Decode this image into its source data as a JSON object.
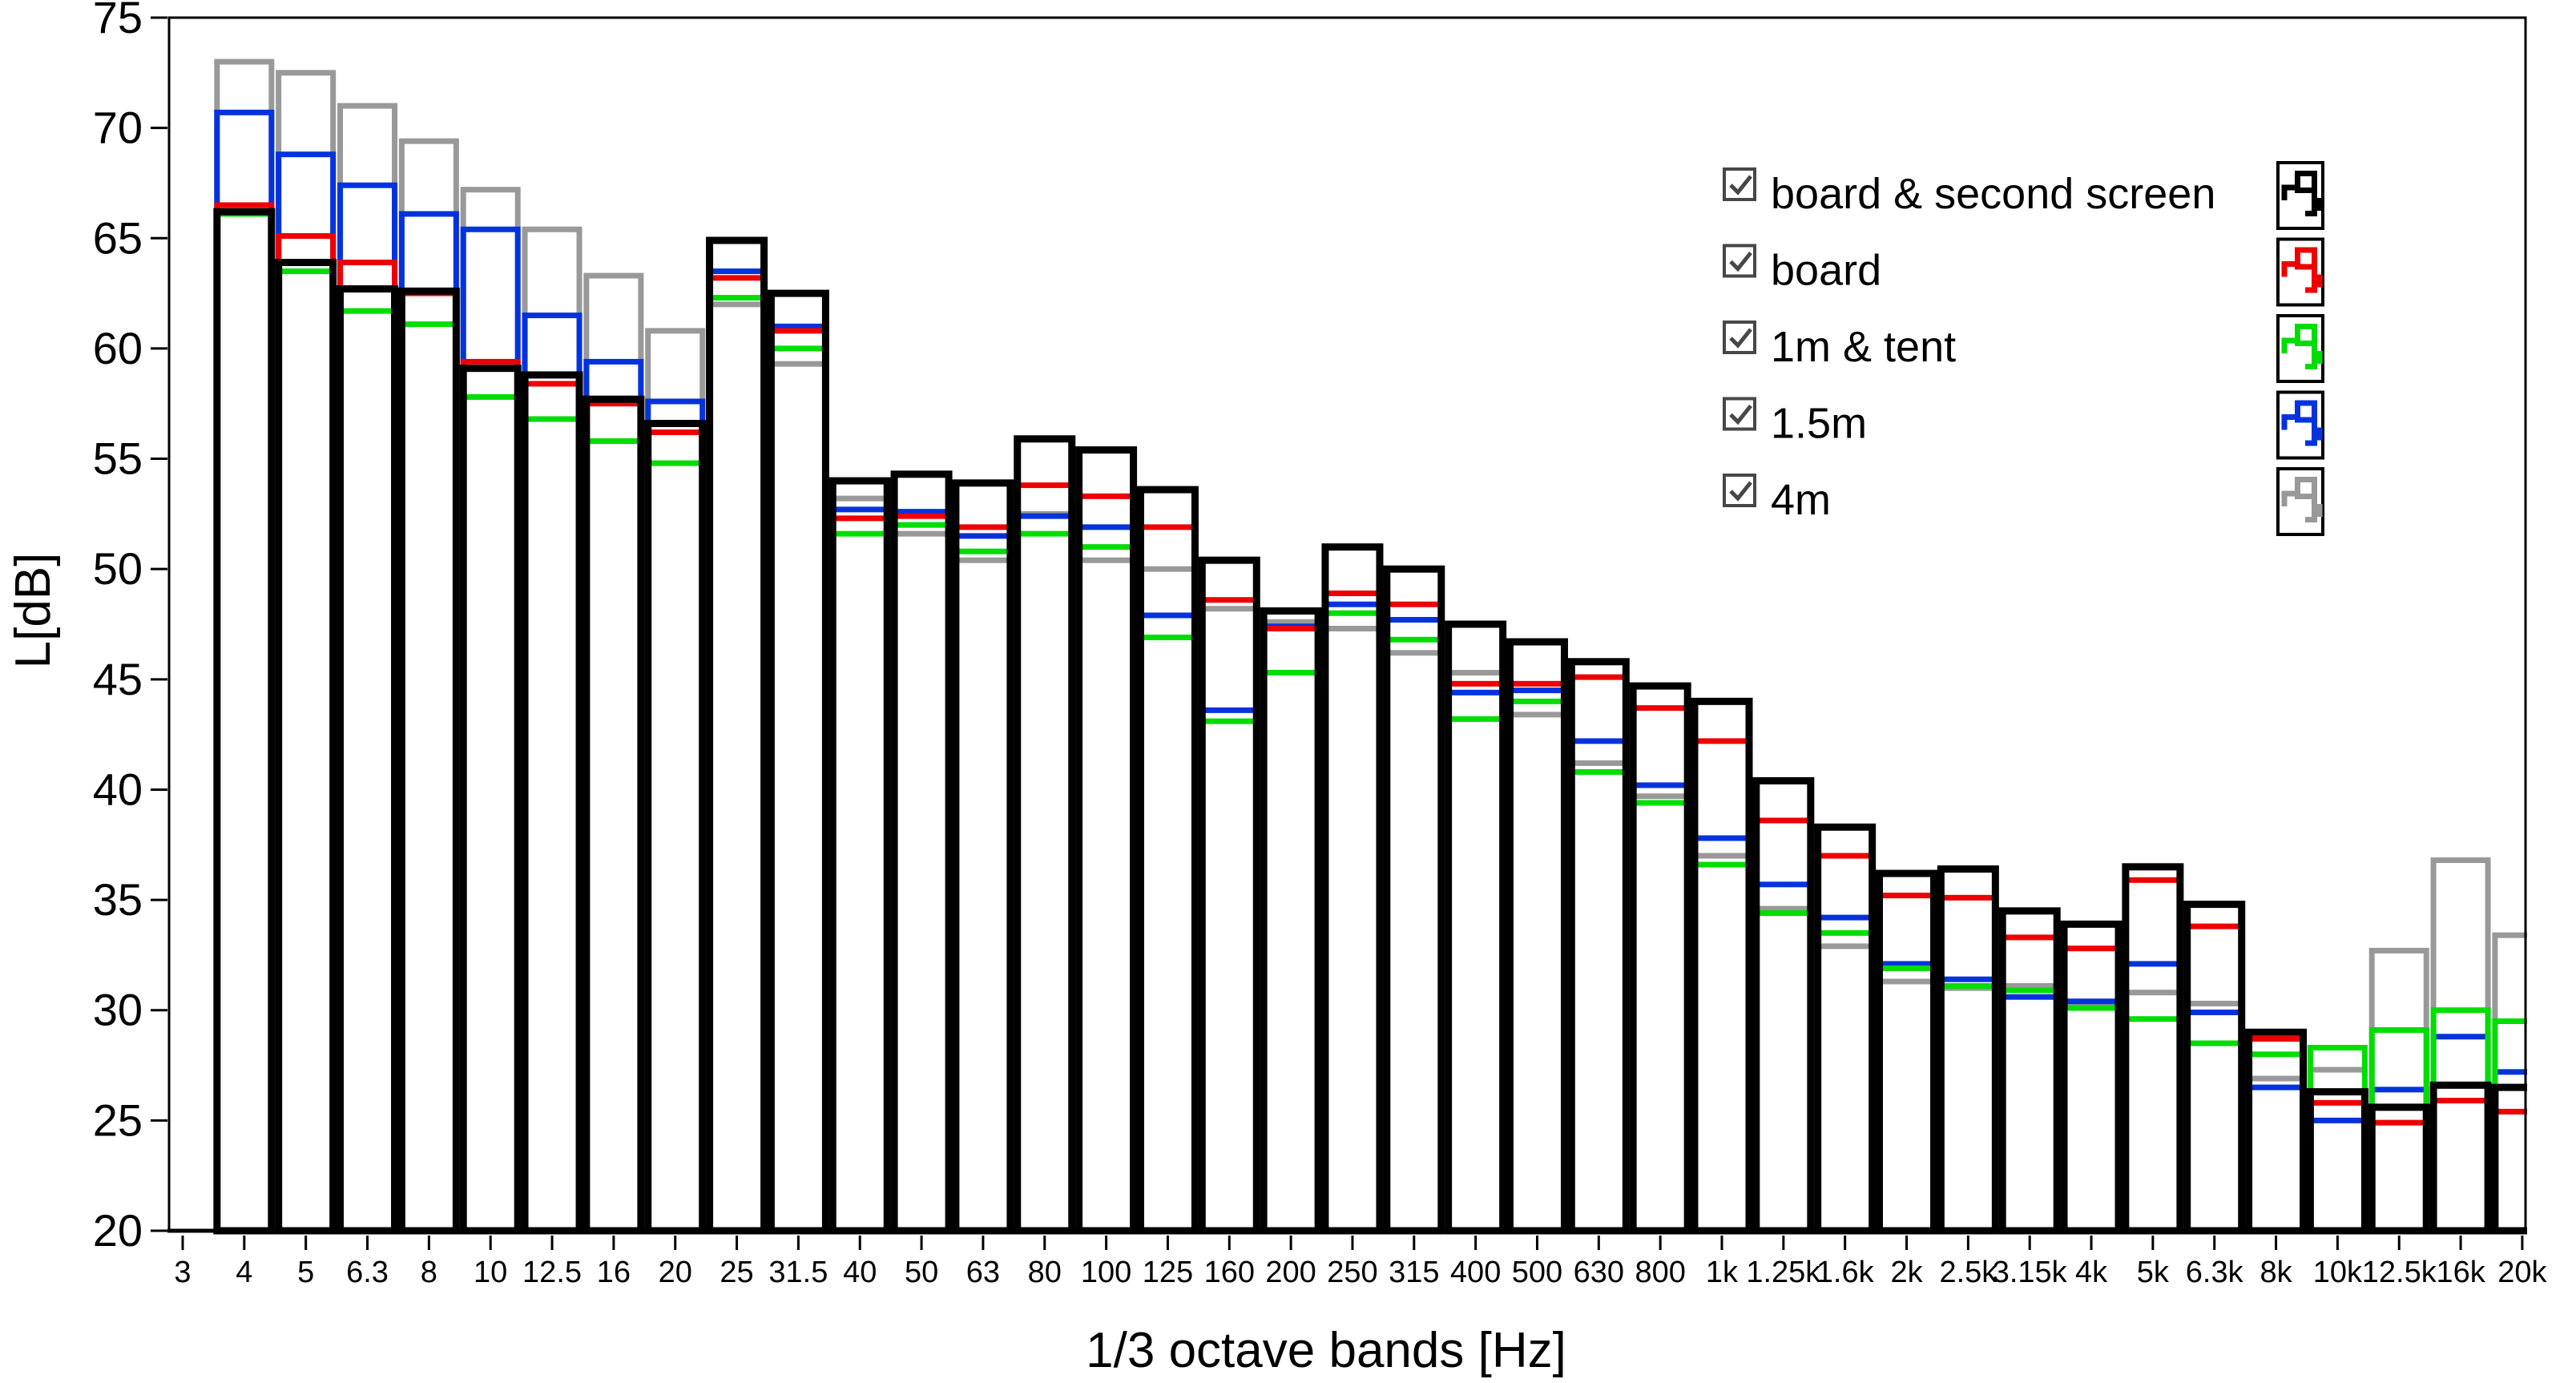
{
  "legend": {
    "items": [
      {
        "label": "board & second screen",
        "color": "#000000",
        "checked": true
      },
      {
        "label": "board",
        "color": "#ee0000",
        "checked": true
      },
      {
        "label": "1m & tent",
        "color": "#00dd00",
        "checked": true
      },
      {
        "label": "1.5m",
        "color": "#0433dd",
        "checked": true
      },
      {
        "label": "4m",
        "color": "#999999",
        "checked": true
      }
    ]
  },
  "chart_data": {
    "type": "bar",
    "subtype": "overlapping-outlined-bars",
    "title": "",
    "xlabel": "1/3 octave bands [Hz]",
    "ylabel": "L[dB]",
    "ylim": [
      20,
      75
    ],
    "ytick_step": 5,
    "grid": false,
    "legend_position": "top-right-inside",
    "categories": [
      "3",
      "4",
      "5",
      "6.3",
      "8",
      "10",
      "12.5",
      "16",
      "20",
      "25",
      "31.5",
      "40",
      "50",
      "63",
      "80",
      "100",
      "125",
      "160",
      "200",
      "250",
      "315",
      "400",
      "500",
      "630",
      "800",
      "1k",
      "1.25k",
      "1.6k",
      "2k",
      "2.5k",
      "3.15k",
      "4k",
      "5k",
      "6.3k",
      "8k",
      "10k",
      "12.5k",
      "16k",
      "20k"
    ],
    "series": [
      {
        "name": "board & second screen",
        "color": "#000000",
        "z": 5,
        "stroke": 9,
        "values": [
          null,
          66.2,
          63.9,
          62.7,
          62.6,
          59.1,
          58.8,
          57.7,
          56.6,
          64.9,
          62.5,
          54.0,
          54.3,
          53.9,
          55.9,
          55.4,
          53.6,
          50.4,
          48.1,
          51.0,
          50.0,
          47.5,
          46.7,
          45.8,
          44.7,
          44.0,
          40.4,
          38.3,
          36.2,
          36.4,
          34.5,
          33.9,
          36.5,
          34.8,
          29.0,
          26.3,
          25.6,
          26.6,
          26.5
        ]
      },
      {
        "name": "board",
        "color": "#ee0000",
        "z": 4,
        "stroke": 7,
        "values": [
          null,
          66.5,
          65.1,
          63.9,
          62.5,
          59.4,
          58.4,
          57.5,
          56.2,
          63.2,
          60.8,
          52.3,
          52.4,
          51.9,
          53.8,
          53.3,
          51.9,
          48.6,
          47.3,
          48.9,
          48.4,
          44.8,
          44.8,
          45.1,
          43.7,
          42.2,
          38.6,
          37.0,
          35.2,
          35.1,
          33.3,
          32.8,
          35.9,
          33.8,
          28.7,
          25.8,
          24.9,
          25.9,
          25.4
        ]
      },
      {
        "name": "1m & tent",
        "color": "#00dd00",
        "z": 3,
        "stroke": 7,
        "values": [
          null,
          66.1,
          63.5,
          61.7,
          61.1,
          57.8,
          56.8,
          55.8,
          54.8,
          62.3,
          60.0,
          51.6,
          52.0,
          50.8,
          51.6,
          51.0,
          46.9,
          43.1,
          45.3,
          48.0,
          46.8,
          43.2,
          44.0,
          40.8,
          39.4,
          36.6,
          34.4,
          33.5,
          31.9,
          31.1,
          30.9,
          30.1,
          29.6,
          28.5,
          28.0,
          28.3,
          29.1,
          30.0,
          29.5
        ]
      },
      {
        "name": "1.5m",
        "color": "#0433dd",
        "z": 2,
        "stroke": 7,
        "values": [
          null,
          70.7,
          68.8,
          67.4,
          66.1,
          65.4,
          61.5,
          59.4,
          57.6,
          63.5,
          61.0,
          52.7,
          52.6,
          51.5,
          52.4,
          51.9,
          47.9,
          43.6,
          47.4,
          48.4,
          47.7,
          44.4,
          44.5,
          42.2,
          40.2,
          37.8,
          35.7,
          34.2,
          32.1,
          31.4,
          30.6,
          30.4,
          32.1,
          29.9,
          26.5,
          25.0,
          26.4,
          28.8,
          27.2
        ]
      },
      {
        "name": "4m",
        "color": "#999999",
        "z": 1,
        "stroke": 7,
        "values": [
          null,
          73.0,
          72.5,
          71.0,
          69.4,
          67.2,
          65.4,
          63.3,
          60.8,
          62.0,
          59.3,
          53.2,
          51.6,
          50.4,
          52.5,
          50.4,
          50.0,
          48.2,
          47.6,
          47.3,
          46.2,
          45.3,
          43.4,
          41.2,
          39.7,
          37.0,
          34.6,
          32.9,
          31.3,
          31.0,
          31.1,
          30.2,
          30.8,
          30.3,
          26.9,
          27.3,
          32.7,
          36.8,
          33.4
        ]
      }
    ]
  }
}
